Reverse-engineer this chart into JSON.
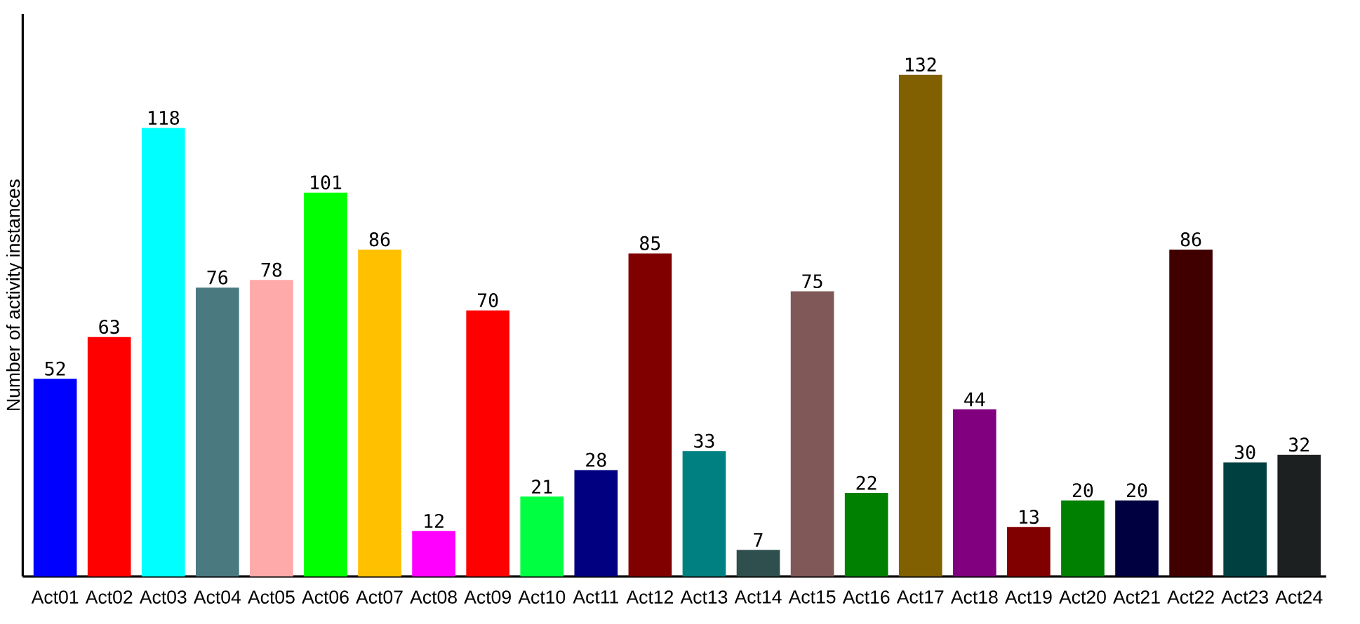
{
  "chart_data": {
    "type": "bar",
    "ylabel": "Number of activity instances",
    "categories": [
      "Act01",
      "Act02",
      "Act03",
      "Act04",
      "Act05",
      "Act06",
      "Act07",
      "Act08",
      "Act09",
      "Act10",
      "Act11",
      "Act12",
      "Act13",
      "Act14",
      "Act15",
      "Act16",
      "Act17",
      "Act18",
      "Act19",
      "Act20",
      "Act21",
      "Act22",
      "Act23",
      "Act24"
    ],
    "values": [
      52,
      63,
      118,
      76,
      78,
      101,
      86,
      12,
      70,
      21,
      28,
      85,
      33,
      7,
      75,
      22,
      132,
      44,
      13,
      20,
      20,
      86,
      30,
      32
    ],
    "colors": [
      "#0000ff",
      "#ff0000",
      "#00ffff",
      "#4a7a80",
      "#ffaaaa",
      "#00ff00",
      "#ffc000",
      "#ff00ff",
      "#ff0000",
      "#00ff40",
      "#000080",
      "#800000",
      "#008080",
      "#2f4f4f",
      "#805858",
      "#008000",
      "#806000",
      "#800080",
      "#800000",
      "#008000",
      "#000040",
      "#400000",
      "#004040",
      "#1c2020"
    ],
    "ylim": [
      0,
      148
    ],
    "data_labels": true
  }
}
